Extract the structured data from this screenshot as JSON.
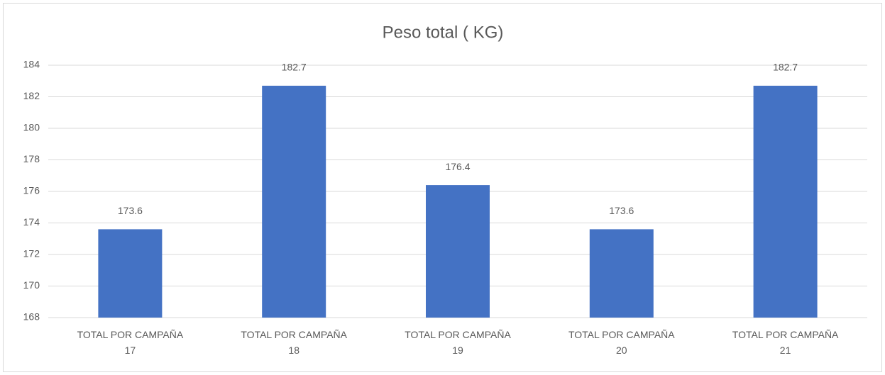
{
  "chart_data": {
    "type": "bar",
    "title": "Peso total ( KG)",
    "categories": [
      "TOTAL POR CAMPAÑA\n17",
      "TOTAL POR CAMPAÑA\n18",
      "TOTAL POR CAMPAÑA\n19",
      "TOTAL POR CAMPAÑA\n20",
      "TOTAL POR CAMPAÑA\n21"
    ],
    "values": [
      173.6,
      182.7,
      176.4,
      173.6,
      182.7
    ],
    "color": "#4472c4",
    "ylim": [
      168,
      184
    ],
    "yticks": [
      168,
      170,
      172,
      174,
      176,
      178,
      180,
      182,
      184
    ],
    "grid": true,
    "data_labels": true
  }
}
